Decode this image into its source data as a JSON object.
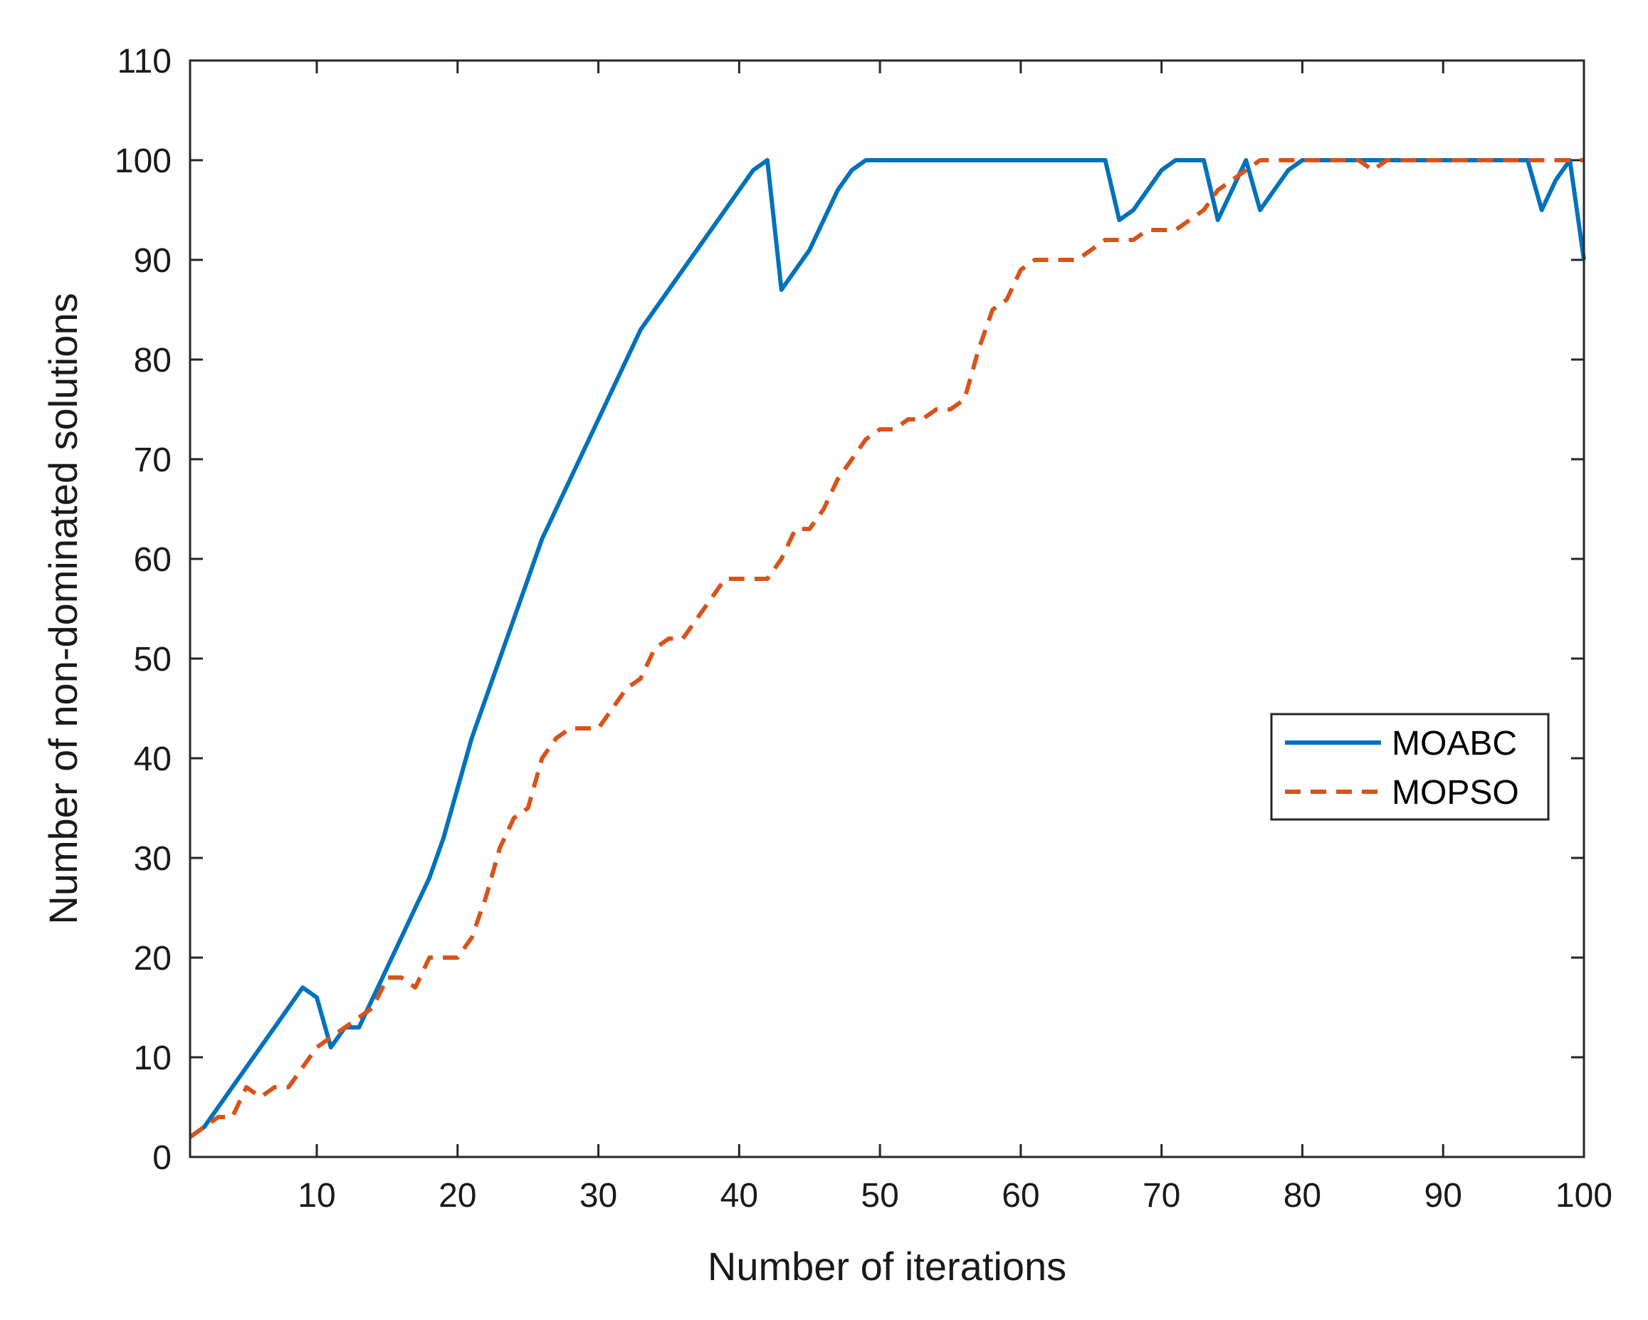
{
  "chart_data": {
    "type": "line",
    "title": "",
    "xlabel": "Number of iterations",
    "ylabel": "Number of non-dominated solutions",
    "xlim": [
      1,
      100
    ],
    "ylim": [
      0,
      110
    ],
    "xticks": [
      10,
      20,
      30,
      40,
      50,
      60,
      70,
      80,
      90,
      100
    ],
    "yticks": [
      0,
      10,
      20,
      30,
      40,
      50,
      60,
      70,
      80,
      90,
      100,
      110
    ],
    "grid": false,
    "legend_position": "right",
    "series": [
      {
        "name": "MOABC",
        "color": "#0072BD",
        "style": "solid",
        "x": [
          1,
          2,
          3,
          4,
          5,
          6,
          7,
          8,
          9,
          10,
          11,
          12,
          13,
          14,
          15,
          16,
          17,
          18,
          19,
          20,
          21,
          22,
          23,
          24,
          25,
          26,
          27,
          28,
          29,
          30,
          31,
          32,
          33,
          34,
          35,
          36,
          37,
          38,
          39,
          40,
          41,
          42,
          43,
          44,
          45,
          46,
          47,
          48,
          49,
          50,
          51,
          52,
          53,
          54,
          55,
          56,
          57,
          58,
          59,
          60,
          61,
          62,
          63,
          64,
          65,
          66,
          67,
          68,
          69,
          70,
          71,
          72,
          73,
          74,
          75,
          76,
          77,
          78,
          79,
          80,
          81,
          82,
          83,
          84,
          85,
          86,
          87,
          88,
          89,
          90,
          91,
          92,
          93,
          94,
          95,
          96,
          97,
          98,
          99,
          100
        ],
        "values": [
          2,
          3,
          5,
          7,
          9,
          11,
          13,
          15,
          17,
          16,
          11,
          13,
          13,
          16,
          19,
          22,
          25,
          28,
          32,
          37,
          42,
          46,
          50,
          54,
          58,
          62,
          65,
          68,
          71,
          74,
          77,
          80,
          83,
          85,
          87,
          89,
          91,
          93,
          95,
          97,
          99,
          100,
          87,
          89,
          91,
          94,
          97,
          99,
          100,
          100,
          100,
          100,
          100,
          100,
          100,
          100,
          100,
          100,
          100,
          100,
          100,
          100,
          100,
          100,
          100,
          100,
          94,
          95,
          97,
          99,
          100,
          100,
          100,
          94,
          97,
          100,
          95,
          97,
          99,
          100,
          100,
          100,
          100,
          100,
          100,
          100,
          100,
          100,
          100,
          100,
          100,
          100,
          100,
          100,
          100,
          100,
          95,
          98,
          100,
          90
        ]
      },
      {
        "name": "MOPSO",
        "color": "#D95319",
        "style": "dashed",
        "x": [
          1,
          2,
          3,
          4,
          5,
          6,
          7,
          8,
          9,
          10,
          11,
          12,
          13,
          14,
          15,
          16,
          17,
          18,
          19,
          20,
          21,
          22,
          23,
          24,
          25,
          26,
          27,
          28,
          29,
          30,
          31,
          32,
          33,
          34,
          35,
          36,
          37,
          38,
          39,
          40,
          41,
          42,
          43,
          44,
          45,
          46,
          47,
          48,
          49,
          50,
          51,
          52,
          53,
          54,
          55,
          56,
          57,
          58,
          59,
          60,
          61,
          62,
          63,
          64,
          65,
          66,
          67,
          68,
          69,
          70,
          71,
          72,
          73,
          74,
          75,
          76,
          77,
          78,
          79,
          80,
          81,
          82,
          83,
          84,
          85,
          86,
          87,
          88,
          89,
          90,
          91,
          92,
          93,
          94,
          95,
          96,
          97,
          98,
          99,
          100
        ],
        "values": [
          2,
          3,
          4,
          4,
          7,
          6,
          7,
          7,
          9,
          11,
          12,
          13,
          14,
          15,
          18,
          18,
          17,
          20,
          20,
          20,
          22,
          26,
          31,
          34,
          35,
          40,
          42,
          43,
          43,
          43,
          45,
          47,
          48,
          51,
          52,
          52,
          54,
          56,
          58,
          58,
          58,
          58,
          60,
          63,
          63,
          65,
          68,
          70,
          72,
          73,
          73,
          74,
          74,
          75,
          75,
          76,
          81,
          85,
          86,
          89,
          90,
          90,
          90,
          90,
          91,
          92,
          92,
          92,
          93,
          93,
          93,
          94,
          95,
          97,
          98,
          99,
          100,
          100,
          100,
          100,
          100,
          100,
          100,
          100,
          99,
          100,
          100,
          100,
          100,
          100,
          100,
          100,
          100,
          100,
          100,
          100,
          100,
          100,
          100,
          100
        ]
      }
    ]
  }
}
